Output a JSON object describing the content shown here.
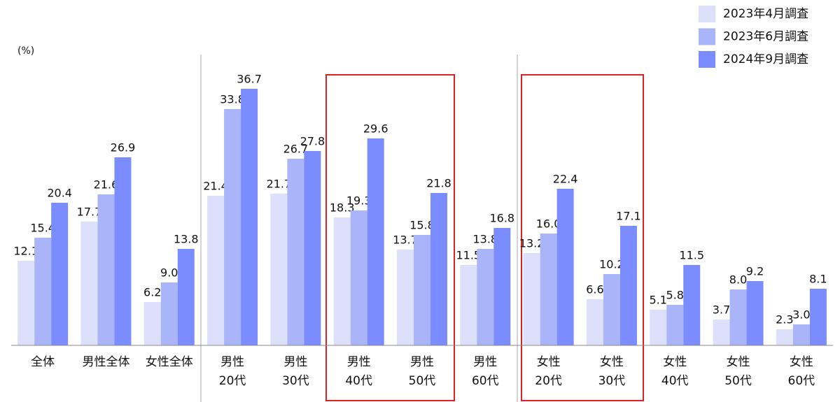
{
  "chart_data": {
    "type": "bar",
    "y_label": "(%)",
    "categories": [
      [
        "全体"
      ],
      [
        "男性全体"
      ],
      [
        "女性全体"
      ],
      [
        "男性",
        "20代"
      ],
      [
        "男性",
        "30代"
      ],
      [
        "男性",
        "40代"
      ],
      [
        "男性",
        "50代"
      ],
      [
        "男性",
        "60代"
      ],
      [
        "女性",
        "20代"
      ],
      [
        "女性",
        "30代"
      ],
      [
        "女性",
        "40代"
      ],
      [
        "女性",
        "50代"
      ],
      [
        "女性",
        "60代"
      ]
    ],
    "series": [
      {
        "name": "2023年4月調査",
        "color": "#dde0fa",
        "values": [
          12.1,
          17.7,
          6.2,
          21.4,
          21.7,
          18.3,
          13.7,
          11.5,
          13.2,
          6.6,
          5.1,
          3.7,
          2.3
        ],
        "value_labels": [
          "12.1",
          "17.7",
          "6.2",
          "21.4",
          "21.7",
          "18.3",
          "13.7",
          "11.5",
          "13.2",
          "6.6",
          "5.1",
          "3.7",
          "2.3"
        ]
      },
      {
        "name": "2023年6月調査",
        "color": "#aab4f8",
        "values": [
          15.4,
          21.6,
          9.0,
          33.8,
          26.7,
          19.3,
          15.8,
          13.8,
          16.0,
          10.2,
          5.8,
          8.0,
          3.0
        ],
        "value_labels": [
          "15.4",
          "21.6",
          "9.0",
          "33.8",
          "26.7",
          "19.3",
          "15.8",
          "13.8",
          "16.0",
          "10.2",
          "5.8",
          "8.0",
          "3.0"
        ]
      },
      {
        "name": "2024年9月調査",
        "color": "#7b8cff",
        "values": [
          20.4,
          26.9,
          13.8,
          36.7,
          27.8,
          29.6,
          21.8,
          16.8,
          22.4,
          17.1,
          11.5,
          9.2,
          8.1
        ],
        "value_labels": [
          "20.4",
          "26.9",
          "13.8",
          "36.7",
          "27.8",
          "29.6",
          "21.8",
          "16.8",
          "22.4",
          "17.1",
          "11.5",
          "9.2",
          "8.1"
        ]
      }
    ],
    "ylim": [
      0,
      40
    ],
    "legend": "top-right"
  }
}
